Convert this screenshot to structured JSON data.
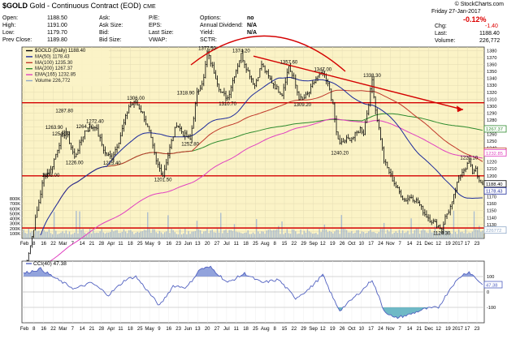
{
  "header": {
    "title_symbol": "$GOLD",
    "title_desc": "Gold - Continuous Contract (EOD)",
    "title_exchange": "CME",
    "brand": "© StockCharts.com",
    "date": "Friday  27-Jan-2017",
    "change_pct": "-0.12%",
    "rows": [
      {
        "label": "Open:",
        "value": "1188.50"
      },
      {
        "label": "High:",
        "value": "1191.00"
      },
      {
        "label": "Low:",
        "value": "1179.70"
      },
      {
        "label": "Prev Close:",
        "value": "1189.80"
      }
    ],
    "col2": [
      "Ask:",
      "Ask Size:",
      "Bid:",
      "Bid Size:"
    ],
    "col3": [
      "P/E:",
      "EPS:",
      "Last Size:",
      "VWAP:"
    ],
    "options": {
      "label": "Options:",
      "value": "no"
    },
    "dividend": {
      "label": "Annual Dividend:",
      "value": "N/A"
    },
    "yield": {
      "label": "Yield:",
      "value": "N/A"
    },
    "sctr": {
      "label": "SCTR:",
      "value": ""
    },
    "right_rows": [
      {
        "label": "Chg:",
        "value": "-1.40"
      },
      {
        "label": "Last:",
        "value": "1188.40"
      },
      {
        "label": "Volume:",
        "value": "226,772"
      }
    ]
  },
  "chart_data": [
    {
      "type": "line",
      "title": "$GOLD (Daily) 1188.40",
      "ylim": [
        1110,
        1385
      ],
      "y_ticks": [
        1120,
        1130,
        1140,
        1150,
        1160,
        1170,
        1180,
        1190,
        1200,
        1210,
        1220,
        1230,
        1240,
        1250,
        1260,
        1270,
        1280,
        1290,
        1300,
        1310,
        1320,
        1330,
        1340,
        1350,
        1360,
        1370,
        1380
      ],
      "volume_ticks": [
        "100K",
        "200K",
        "300K",
        "400K",
        "500K",
        "600K",
        "700K",
        "800K"
      ],
      "volume_max": 900000,
      "x_tick_labels": [
        "Feb",
        "8",
        "16",
        "22",
        "Mar",
        "7",
        "14",
        "21",
        "28",
        "Apr",
        "11",
        "18",
        "25",
        "May",
        "9",
        "16",
        "23",
        "Jun",
        "13",
        "20",
        "27",
        "Jul",
        "11",
        "18",
        "25",
        "Aug",
        "8",
        "15",
        "22",
        "29",
        "Sep",
        "12",
        "19",
        "26",
        "Oct",
        "10",
        "17",
        "24",
        "Nov",
        "7",
        "14",
        "21",
        "Dec",
        "12",
        "19",
        "2017",
        "17",
        "23"
      ],
      "legend": [
        {
          "name": "$GOLD (Daily) 1188.40",
          "color": "#000000"
        },
        {
          "name": "MA(50) 1178.43",
          "color": "#1c2a9b"
        },
        {
          "name": "MA(100) 1235.30",
          "color": "#c0392b"
        },
        {
          "name": "MA(200) 1267.37",
          "color": "#2e8b2e"
        },
        {
          "name": "EMA(165) 1232.85",
          "color": "#e040c0"
        },
        {
          "name": "Volume 226,772",
          "color": "#8fa8c8"
        }
      ],
      "price_keypoints": [
        [
          0,
          1062
        ],
        [
          4,
          1100
        ],
        [
          8,
          1150
        ],
        [
          12,
          1200
        ],
        [
          16,
          1208
        ],
        [
          22,
          1254
        ],
        [
          25,
          1264
        ],
        [
          30,
          1226
        ],
        [
          36,
          1264
        ],
        [
          42,
          1272
        ],
        [
          48,
          1232
        ],
        [
          52,
          1226
        ],
        [
          56,
          1250
        ],
        [
          62,
          1300
        ],
        [
          66,
          1306
        ],
        [
          70,
          1290
        ],
        [
          74,
          1262
        ],
        [
          78,
          1220
        ],
        [
          82,
          1201
        ],
        [
          86,
          1240
        ],
        [
          90,
          1275
        ],
        [
          94,
          1260
        ],
        [
          98,
          1252
        ],
        [
          102,
          1318
        ],
        [
          106,
          1340
        ],
        [
          108,
          1377
        ],
        [
          112,
          1350
        ],
        [
          116,
          1320
        ],
        [
          120,
          1312
        ],
        [
          124,
          1345
        ],
        [
          128,
          1374
        ],
        [
          132,
          1350
        ],
        [
          136,
          1330
        ],
        [
          140,
          1360
        ],
        [
          144,
          1342
        ],
        [
          148,
          1328
        ],
        [
          152,
          1318
        ],
        [
          156,
          1358
        ],
        [
          160,
          1330
        ],
        [
          162,
          1312
        ],
        [
          164,
          1309
        ],
        [
          168,
          1320
        ],
        [
          172,
          1340
        ],
        [
          176,
          1347
        ],
        [
          180,
          1325
        ],
        [
          182,
          1300
        ],
        [
          184,
          1262
        ],
        [
          186,
          1245
        ],
        [
          190,
          1252
        ],
        [
          194,
          1255
        ],
        [
          198,
          1268
        ],
        [
          200,
          1262
        ],
        [
          203,
          1305
        ],
        [
          205,
          1338
        ],
        [
          207,
          1295
        ],
        [
          210,
          1255
        ],
        [
          212,
          1222
        ],
        [
          216,
          1200
        ],
        [
          220,
          1180
        ],
        [
          224,
          1165
        ],
        [
          228,
          1170
        ],
        [
          232,
          1162
        ],
        [
          236,
          1145
        ],
        [
          240,
          1135
        ],
        [
          244,
          1128
        ],
        [
          246,
          1124
        ],
        [
          248,
          1140
        ],
        [
          250,
          1150
        ],
        [
          252,
          1160
        ],
        [
          254,
          1180
        ],
        [
          256,
          1195
        ],
        [
          258,
          1208
        ],
        [
          260,
          1212
        ],
        [
          262,
          1220
        ],
        [
          264,
          1205
        ],
        [
          266,
          1212
        ],
        [
          268,
          1190
        ],
        [
          270,
          1188
        ]
      ],
      "labels": [
        {
          "text": "1377.50",
          "i": 108,
          "v": 1377.5,
          "pos": "above"
        },
        {
          "text": "1374.20",
          "i": 128,
          "v": 1374.2,
          "pos": "above"
        },
        {
          "text": "1357.60",
          "i": 156,
          "v": 1357.6,
          "pos": "above"
        },
        {
          "text": "1347.00",
          "i": 176,
          "v": 1347,
          "pos": "above"
        },
        {
          "text": "1338.30",
          "i": 205,
          "v": 1338.3,
          "pos": "above"
        },
        {
          "text": "1318.90",
          "i": 102,
          "v": 1318.9,
          "pos": "left"
        },
        {
          "text": "1310.70",
          "i": 120,
          "v": 1310.7,
          "pos": "below"
        },
        {
          "text": "1309.20",
          "i": 164,
          "v": 1309.2,
          "pos": "below"
        },
        {
          "text": "1306.00",
          "i": 66,
          "v": 1306,
          "pos": "above"
        },
        {
          "text": "1287.80",
          "i": 24,
          "v": 1287.8,
          "pos": "above"
        },
        {
          "text": "1272.40",
          "i": 42,
          "v": 1272.4,
          "pos": "above"
        },
        {
          "text": "1264.70",
          "i": 36,
          "v": 1264.7,
          "pos": "above"
        },
        {
          "text": "1263.90",
          "i": 18,
          "v": 1263.9,
          "pos": "above"
        },
        {
          "text": "1254.30",
          "i": 22,
          "v": 1254.3,
          "pos": "above"
        },
        {
          "text": "1252.80",
          "i": 98,
          "v": 1252.8,
          "pos": "below"
        },
        {
          "text": "1240.20",
          "i": 186,
          "v": 1240.2,
          "pos": "below"
        },
        {
          "text": "1226.00",
          "i": 30,
          "v": 1226,
          "pos": "below"
        },
        {
          "text": "1225.40",
          "i": 52,
          "v": 1225.4,
          "pos": "below"
        },
        {
          "text": "1220.10",
          "i": 262,
          "v": 1220.1,
          "pos": "above"
        },
        {
          "text": "1208.00",
          "i": 16,
          "v": 1208,
          "pos": "below"
        },
        {
          "text": "1201.50",
          "i": 82,
          "v": 1201.5,
          "pos": "below"
        },
        {
          "text": "1124.30",
          "i": 246,
          "v": 1124.3,
          "pos": "below"
        }
      ],
      "right_tags": [
        {
          "text": "1267.37",
          "v": 1267.37,
          "color": "#2e8b2e"
        },
        {
          "text": "1235.30",
          "v": 1235.3,
          "color": "#c0392b"
        },
        {
          "text": "1232.85",
          "v": 1232.85,
          "color": "#e040c0"
        },
        {
          "text": "1188.40",
          "v": 1188.4,
          "color": "#000000"
        },
        {
          "text": "1178.43",
          "v": 1178.43,
          "color": "#1c2a9b"
        },
        {
          "text": "226772",
          "v": 1122,
          "color": "#8fa8c8"
        }
      ],
      "hlines": [
        1305,
        1200,
        1125
      ]
    },
    {
      "type": "line",
      "title": "CCI(40) 47.38",
      "ylim": [
        -200,
        200
      ],
      "y_ticks": [
        100,
        0,
        -100
      ],
      "value_tag": "47.38",
      "x_tick_labels": [
        "Feb",
        "8",
        "16",
        "22",
        "Mar",
        "7",
        "14",
        "21",
        "28",
        "Apr",
        "11",
        "18",
        "25",
        "May",
        "9",
        "16",
        "23",
        "Jun",
        "13",
        "20",
        "27",
        "Jul",
        "11",
        "18",
        "25",
        "Aug",
        "8",
        "15",
        "22",
        "29",
        "Sep",
        "12",
        "19",
        "26",
        "Oct",
        "10",
        "17",
        "24",
        "Nov",
        "7",
        "14",
        "21",
        "Dec",
        "12",
        "19",
        "2017",
        "17",
        "23"
      ],
      "cci_keypoints": [
        [
          0,
          120
        ],
        [
          10,
          150
        ],
        [
          20,
          80
        ],
        [
          30,
          20
        ],
        [
          40,
          60
        ],
        [
          50,
          -20
        ],
        [
          60,
          80
        ],
        [
          66,
          100
        ],
        [
          72,
          20
        ],
        [
          80,
          -90
        ],
        [
          88,
          40
        ],
        [
          96,
          30
        ],
        [
          104,
          150
        ],
        [
          110,
          160
        ],
        [
          120,
          60
        ],
        [
          130,
          120
        ],
        [
          140,
          60
        ],
        [
          150,
          80
        ],
        [
          160,
          -40
        ],
        [
          168,
          20
        ],
        [
          176,
          110
        ],
        [
          182,
          -40
        ],
        [
          186,
          -120
        ],
        [
          192,
          -60
        ],
        [
          200,
          20
        ],
        [
          205,
          80
        ],
        [
          212,
          -120
        ],
        [
          218,
          -170
        ],
        [
          226,
          -150
        ],
        [
          236,
          -110
        ],
        [
          244,
          -100
        ],
        [
          252,
          40
        ],
        [
          258,
          110
        ],
        [
          262,
          130
        ],
        [
          266,
          90
        ],
        [
          270,
          47
        ]
      ]
    }
  ]
}
